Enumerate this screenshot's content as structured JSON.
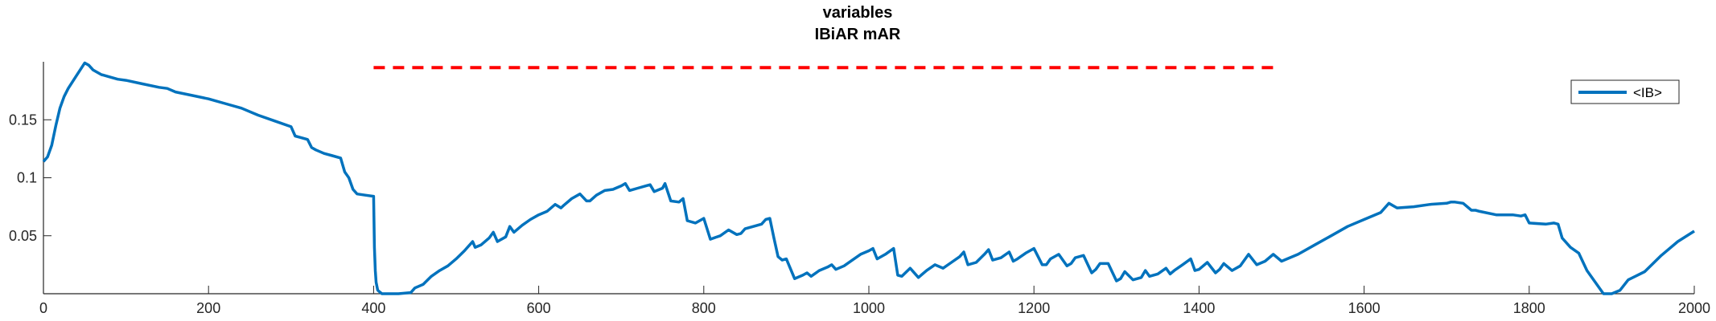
{
  "chart_data": {
    "type": "line",
    "title": "variables",
    "subtitle": "IBiAR mAR",
    "xlabel": "",
    "ylabel": "",
    "xlim": [
      0,
      2000
    ],
    "ylim": [
      0,
      0.2
    ],
    "xticks": [
      0,
      200,
      400,
      600,
      800,
      1000,
      1200,
      1400,
      1600,
      1800,
      2000
    ],
    "xtick_labels": [
      "0",
      "200",
      "400",
      "600",
      "800",
      "1000",
      "1200",
      "1400",
      "1600",
      "1800",
      "2000"
    ],
    "yticks": [
      0.05,
      0.1,
      0.15
    ],
    "ytick_labels": [
      "0.05",
      "0.1",
      "0.15"
    ],
    "grid": false,
    "legend": {
      "placement": "top-right",
      "entries": [
        "<IB>"
      ]
    },
    "series": [
      {
        "name": "<IB>",
        "color": "#0072BD",
        "style": "solid",
        "x": [
          0,
          5,
          10,
          15,
          20,
          25,
          30,
          40,
          50,
          55,
          60,
          70,
          80,
          90,
          100,
          120,
          140,
          150,
          160,
          180,
          200,
          220,
          240,
          260,
          280,
          300,
          305,
          310,
          320,
          325,
          330,
          340,
          350,
          360,
          365,
          370,
          375,
          380,
          390,
          400,
          401,
          402,
          403,
          405,
          410,
          420,
          430,
          445,
          450,
          460,
          470,
          480,
          490,
          500,
          510,
          520,
          523,
          530,
          540,
          545,
          550,
          560,
          565,
          570,
          580,
          590,
          600,
          610,
          620,
          627,
          630,
          640,
          650,
          658,
          662,
          670,
          680,
          690,
          700,
          705,
          710,
          720,
          730,
          735,
          740,
          750,
          753,
          760,
          770,
          775,
          780,
          790,
          800,
          808,
          812,
          820,
          830,
          840,
          845,
          850,
          860,
          870,
          875,
          880,
          885,
          890,
          895,
          900,
          910,
          920,
          925,
          930,
          940,
          950,
          955,
          960,
          970,
          980,
          990,
          1000,
          1005,
          1010,
          1020,
          1030,
          1035,
          1040,
          1050,
          1060,
          1070,
          1080,
          1090,
          1100,
          1110,
          1115,
          1120,
          1130,
          1140,
          1145,
          1150,
          1160,
          1170,
          1175,
          1180,
          1190,
          1200,
          1210,
          1215,
          1220,
          1230,
          1240,
          1245,
          1250,
          1260,
          1270,
          1275,
          1280,
          1290,
          1300,
          1305,
          1310,
          1320,
          1330,
          1335,
          1340,
          1350,
          1360,
          1365,
          1370,
          1380,
          1390,
          1395,
          1400,
          1410,
          1420,
          1425,
          1430,
          1440,
          1450,
          1455,
          1460,
          1470,
          1480,
          1490,
          1500,
          1520,
          1540,
          1560,
          1580,
          1600,
          1620,
          1625,
          1630,
          1640,
          1660,
          1680,
          1700,
          1705,
          1710,
          1720,
          1730,
          1735,
          1740,
          1760,
          1780,
          1790,
          1795,
          1800,
          1820,
          1830,
          1835,
          1840,
          1850,
          1860,
          1870,
          1880,
          1890,
          1900,
          1910,
          1920,
          1940,
          1960,
          1980,
          2000
        ],
        "y": [
          0.114,
          0.118,
          0.128,
          0.145,
          0.16,
          0.17,
          0.177,
          0.188,
          0.199,
          0.197,
          0.193,
          0.189,
          0.187,
          0.185,
          0.184,
          0.181,
          0.178,
          0.177,
          0.174,
          0.171,
          0.168,
          0.164,
          0.16,
          0.154,
          0.149,
          0.144,
          0.136,
          0.135,
          0.133,
          0.126,
          0.124,
          0.121,
          0.119,
          0.117,
          0.105,
          0.1,
          0.09,
          0.086,
          0.085,
          0.084,
          0.04,
          0.02,
          0.01,
          0.003,
          0.0,
          0.0,
          0.0,
          0.001,
          0.005,
          0.008,
          0.015,
          0.02,
          0.024,
          0.03,
          0.037,
          0.045,
          0.04,
          0.042,
          0.048,
          0.053,
          0.045,
          0.049,
          0.058,
          0.053,
          0.059,
          0.064,
          0.068,
          0.071,
          0.077,
          0.074,
          0.076,
          0.082,
          0.086,
          0.08,
          0.08,
          0.085,
          0.089,
          0.09,
          0.093,
          0.095,
          0.089,
          0.091,
          0.093,
          0.094,
          0.088,
          0.091,
          0.095,
          0.08,
          0.079,
          0.082,
          0.063,
          0.061,
          0.065,
          0.047,
          0.048,
          0.05,
          0.055,
          0.051,
          0.052,
          0.056,
          0.058,
          0.06,
          0.064,
          0.065,
          0.048,
          0.032,
          0.029,
          0.03,
          0.013,
          0.016,
          0.018,
          0.015,
          0.02,
          0.023,
          0.025,
          0.021,
          0.024,
          0.029,
          0.034,
          0.037,
          0.039,
          0.03,
          0.034,
          0.039,
          0.016,
          0.015,
          0.022,
          0.014,
          0.02,
          0.025,
          0.022,
          0.027,
          0.032,
          0.036,
          0.025,
          0.027,
          0.034,
          0.038,
          0.029,
          0.031,
          0.036,
          0.028,
          0.03,
          0.035,
          0.039,
          0.025,
          0.025,
          0.03,
          0.034,
          0.024,
          0.026,
          0.031,
          0.033,
          0.018,
          0.021,
          0.026,
          0.026,
          0.011,
          0.013,
          0.019,
          0.012,
          0.014,
          0.02,
          0.015,
          0.017,
          0.022,
          0.017,
          0.02,
          0.025,
          0.03,
          0.02,
          0.021,
          0.027,
          0.018,
          0.021,
          0.026,
          0.02,
          0.024,
          0.029,
          0.034,
          0.025,
          0.028,
          0.034,
          0.028,
          0.034,
          0.042,
          0.05,
          0.058,
          0.064,
          0.07,
          0.074,
          0.078,
          0.074,
          0.075,
          0.077,
          0.078,
          0.079,
          0.079,
          0.078,
          0.072,
          0.072,
          0.071,
          0.068,
          0.068,
          0.067,
          0.068,
          0.061,
          0.06,
          0.061,
          0.06,
          0.048,
          0.04,
          0.035,
          0.02,
          0.01,
          0.0,
          0.0,
          0.003,
          0.012,
          0.019,
          0.033,
          0.045,
          0.054
        ]
      },
      {
        "name": "",
        "color": "#FF0000",
        "style": "dashed",
        "x": [
          400,
          1490
        ],
        "y": [
          0.195,
          0.195
        ]
      }
    ]
  }
}
